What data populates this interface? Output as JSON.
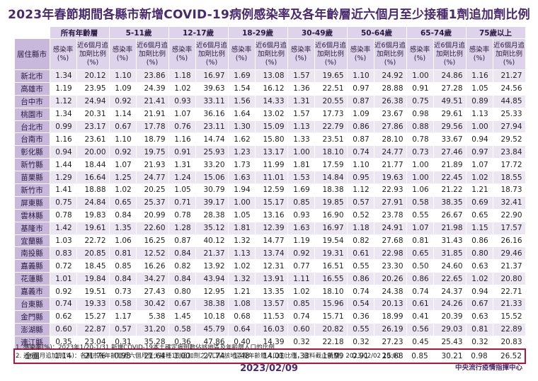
{
  "title": "2023年春節期間各縣市新增COVID-19病例感染率及各年齡層近六個月至少接種1劑追加劑比例",
  "header": {
    "row_header": "居住縣市",
    "age_groups": [
      "所有年齡層",
      "5-11歲",
      "12-17歲",
      "18-29歲",
      "30-49歲",
      "50-64歲",
      "65-74歲",
      "75歲以上"
    ],
    "rate_label": "感染率(%)",
    "boost_label": "近6個月追加劑比例(%)"
  },
  "rows": [
    {
      "name": "新北市",
      "values": [
        "1.34",
        "20.12",
        "1.10",
        "23.86",
        "1.18",
        "16.97",
        "1.69",
        "13.08",
        "1.57",
        "19.65",
        "1.10",
        "24.92",
        "1.00",
        "24.86",
        "1.16",
        "21.27"
      ]
    },
    {
      "name": "高雄市",
      "values": [
        "1.19",
        "23.95",
        "1.09",
        "24.39",
        "1.02",
        "39.63",
        "1.54",
        "16.12",
        "1.36",
        "22.51",
        "0.97",
        "28.88",
        "0.91",
        "27.28",
        "1.05",
        "24.56"
      ]
    },
    {
      "name": "台中市",
      "values": [
        "1.12",
        "24.94",
        "0.92",
        "21.41",
        "0.93",
        "33.11",
        "1.56",
        "14.33",
        "1.31",
        "20.55",
        "0.87",
        "26.38",
        "0.75",
        "49.51",
        "0.89",
        "44.85"
      ]
    },
    {
      "name": "桃園市",
      "values": [
        "1.34",
        "20.31",
        "1.14",
        "21.91",
        "1.07",
        "36.16",
        "1.64",
        "13.02",
        "1.57",
        "17.73",
        "1.09",
        "23.67",
        "0.98",
        "29.61",
        "1.13",
        "25.33"
      ]
    },
    {
      "name": "台北市",
      "values": [
        "0.99",
        "23.17",
        "0.67",
        "17.78",
        "0.76",
        "23.11",
        "1.30",
        "15.09",
        "1.13",
        "22.79",
        "0.86",
        "27.86",
        "0.88",
        "29.56",
        "1.00",
        "27.94"
      ]
    },
    {
      "name": "台南市",
      "values": [
        "1.16",
        "23.61",
        "1.10",
        "18.79",
        "1.16",
        "14.74",
        "1.62",
        "15.80",
        "1.33",
        "23.51",
        "0.87",
        "28.10",
        "0.78",
        "33.67",
        "0.94",
        "29.52"
      ]
    },
    {
      "name": "彰化縣",
      "values": [
        "0.94",
        "20.00",
        "0.92",
        "19.75",
        "0.91",
        "25.93",
        "1.23",
        "13.17",
        "1.00",
        "18.10",
        "0.74",
        "24.77",
        "0.73",
        "27.46",
        "0.97",
        "23.84"
      ]
    },
    {
      "name": "新竹縣",
      "values": [
        "1.44",
        "18.44",
        "1.07",
        "21.93",
        "1.31",
        "33.20",
        "1.73",
        "11.99",
        "1.81",
        "17.59",
        "1.10",
        "21.77",
        "1.00",
        "21.89",
        "1.07",
        "17.72"
      ]
    },
    {
      "name": "苗栗縣",
      "values": [
        "1.29",
        "16.64",
        "1.25",
        "24.77",
        "1.24",
        "15.06",
        "1.63",
        "11.01",
        "1.53",
        "14.84",
        "0.95",
        "19.63",
        "1.00",
        "22.45",
        "1.02",
        "18.55"
      ]
    },
    {
      "name": "新竹市",
      "values": [
        "1.41",
        "18.88",
        "1.02",
        "20.25",
        "1.05",
        "30.79",
        "1.94",
        "12.59",
        "1.69",
        "18.38",
        "1.12",
        "22.93",
        "1.06",
        "21.22",
        "1.21",
        "18.73"
      ]
    },
    {
      "name": "屏東縣",
      "values": [
        "0.75",
        "24.84",
        "0.65",
        "25.37",
        "0.71",
        "39.17",
        "1.00",
        "15.17",
        "0.85",
        "19.85",
        "0.57",
        "27.91",
        "0.58",
        "38.35",
        "0.69",
        "32.41"
      ]
    },
    {
      "name": "雲林縣",
      "values": [
        "0.78",
        "19.83",
        "0.84",
        "20.99",
        "0.78",
        "28.38",
        "1.05",
        "13.16",
        "0.93",
        "16.90",
        "0.52",
        "23.78",
        "0.55",
        "26.67",
        "0.65",
        "22.90"
      ]
    },
    {
      "name": "基隆市",
      "values": [
        "1.42",
        "19.61",
        "1.35",
        "22.60",
        "1.28",
        "35.12",
        "1.81",
        "12.39",
        "1.63",
        "16.97",
        "1.18",
        "24.91",
        "1.07",
        "21.98",
        "1.15",
        "17.57"
      ]
    },
    {
      "name": "宜蘭縣",
      "values": [
        "1.03",
        "22.72",
        "1.06",
        "16.25",
        "0.87",
        "40.12",
        "1.32",
        "14.77",
        "1.19",
        "19.54",
        "0.82",
        "27.68",
        "0.81",
        "31.43",
        "0.86",
        "26.16"
      ]
    },
    {
      "name": "南投縣",
      "values": [
        "0.83",
        "20.85",
        "0.81",
        "12.52",
        "0.84",
        "21.37",
        "1.13",
        "13.74",
        "0.92",
        "19.31",
        "0.61",
        "22.98",
        "0.65",
        "31.85",
        "0.80",
        "29.46"
      ]
    },
    {
      "name": "嘉義縣",
      "values": [
        "0.72",
        "18.45",
        "0.85",
        "16.26",
        "0.82",
        "13.92",
        "1.02",
        "12.31",
        "0.77",
        "16.51",
        "0.55",
        "23.30",
        "0.50",
        "24.60",
        "0.63",
        "21.37"
      ]
    },
    {
      "name": "花蓮縣",
      "values": [
        "1.01",
        "19.84",
        "0.84",
        "34.27",
        "0.84",
        "43.94",
        "1.32",
        "13.91",
        "1.11",
        "16.55",
        "0.86",
        "20.26",
        "0.86",
        "22.65",
        "1.02",
        "20.80"
      ]
    },
    {
      "name": "嘉義市",
      "values": [
        "0.92",
        "19.51",
        "0.73",
        "27.43",
        "0.80",
        "12.95",
        "1.21",
        "13.35",
        "1.02",
        "18.10",
        "0.74",
        "24.38",
        "0.74",
        "24.37",
        "0.94",
        "22.71"
      ]
    },
    {
      "name": "台東縣",
      "values": [
        "0.74",
        "19.33",
        "0.58",
        "30.42",
        "0.67",
        "38.38",
        "1.08",
        "13.57",
        "0.85",
        "15.96",
        "0.54",
        "20.13",
        "0.61",
        "24.26",
        "0.67",
        "21.33"
      ]
    },
    {
      "name": "金門縣",
      "values": [
        "0.62",
        "15.27",
        "1.17",
        "5.38",
        "1.45",
        "10.18",
        "0.68",
        "11.53",
        "0.74",
        "15.71",
        "0.36",
        "18.99",
        "0.41",
        "20.39",
        "0.63",
        "15.52"
      ]
    },
    {
      "name": "澎湖縣",
      "values": [
        "0.60",
        "22.87",
        "0.57",
        "31.20",
        "0.58",
        "45.79",
        "0.64",
        "16.03",
        "0.60",
        "20.82",
        "0.55",
        "26.19",
        "0.56",
        "29.03",
        "0.81",
        "22.89"
      ]
    },
    {
      "name": "連江縣",
      "values": [
        "0.35",
        "23.04",
        "0.31",
        "35.28",
        "0.36",
        "47.86",
        "0.40",
        "14.39",
        "0.32",
        "22.18",
        "0.32",
        "27.23",
        "0.45",
        "25.43",
        "0.32",
        "20.83"
      ]
    }
  ],
  "total": {
    "name": "全國",
    "values": [
      "1.14",
      "21.76",
      "0.98",
      "21.64",
      "1.00",
      "27.74",
      "1.48",
      "14.01",
      "1.33",
      "19.99",
      "0.91",
      "25.68",
      "0.85",
      "30.21",
      "0.98",
      "26.52"
    ]
  },
  "notes": [
    "1. 感染率(%)：2023年1/20-1/31  新增COVID-19本土確定病例數佔該地區及年齡層人口的比例",
    "2. 近6個月追加劑(%)：各縣市各年齡層近六個月至少接種1劑追加劑之人口佔該地區及年齡層人口的比例，資料截止時間：2023/02/02  10:00"
  ],
  "source": "中央流行疫情指揮中心",
  "date": "2023/02/09",
  "colors": {
    "title": "#4a2a6e",
    "header_bg": "#ddd3ea",
    "row_header_bg": "#c8b8dc",
    "stripe": "#ece6f3",
    "total_border": "#b8143a"
  }
}
